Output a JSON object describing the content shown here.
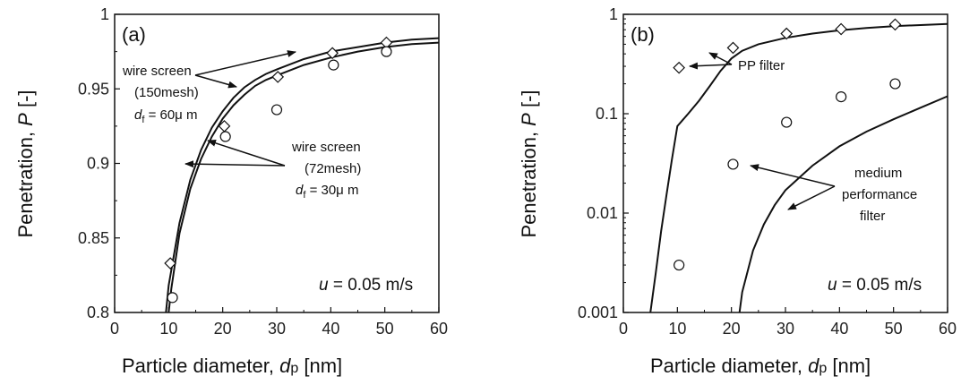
{
  "chart_data": [
    {
      "panel": "(a)",
      "type": "scatter",
      "xlabel": {
        "text": "Particle diameter, ",
        "var": "d",
        "sub": "p",
        "unit": " [nm]"
      },
      "ylabel": {
        "text": "Penetration, ",
        "var": "P",
        "unit": " [-]"
      },
      "xlim": [
        0,
        60
      ],
      "ylim": [
        0.8,
        1.0
      ],
      "yscale": "linear",
      "xticks": [
        0,
        10,
        20,
        30,
        40,
        50,
        60
      ],
      "yticks": [
        0.8,
        0.85,
        0.9,
        0.95,
        1.0
      ],
      "ytick_labels": [
        "0.8",
        "0.85",
        "0.9",
        "0.95",
        "1"
      ],
      "grid": false,
      "condition": {
        "var": "u",
        "text": " = 0.05 m/s"
      },
      "series": [
        {
          "marker": "diamond",
          "x": [
            10.3,
            20.3,
            30.2,
            40.3,
            50.3
          ],
          "y": [
            0.833,
            0.925,
            0.958,
            0.974,
            0.981
          ]
        },
        {
          "marker": "circle",
          "x": [
            10.7,
            20.5,
            30.0,
            40.5,
            50.3
          ],
          "y": [
            0.81,
            0.918,
            0.936,
            0.966,
            0.975
          ]
        },
        {
          "type": "line",
          "x": [
            9.5,
            10,
            12,
            14,
            16,
            18,
            20,
            22,
            24,
            26,
            28,
            30,
            35,
            40,
            45,
            50,
            55,
            60
          ],
          "y": [
            0.8,
            0.818,
            0.86,
            0.889,
            0.909,
            0.924,
            0.935,
            0.944,
            0.951,
            0.956,
            0.96,
            0.963,
            0.97,
            0.975,
            0.978,
            0.981,
            0.983,
            0.984
          ]
        },
        {
          "type": "line",
          "x": [
            10.0,
            10.5,
            12,
            14,
            16,
            18,
            20,
            22,
            24,
            26,
            28,
            30,
            35,
            40,
            45,
            50,
            55,
            60
          ],
          "y": [
            0.8,
            0.816,
            0.853,
            0.883,
            0.903,
            0.918,
            0.93,
            0.939,
            0.946,
            0.952,
            0.956,
            0.959,
            0.966,
            0.971,
            0.975,
            0.978,
            0.98,
            0.981
          ]
        }
      ],
      "annotations": [
        {
          "lines": [
            "wire screen",
            "(150mesh)"
          ],
          "d_var": "d",
          "d_sub": "f",
          "d_text": " = 60μ m"
        },
        {
          "lines": [
            "wire screen",
            "(72mesh)"
          ],
          "d_var": "d",
          "d_sub": "f",
          "d_text": " = 30μ m"
        }
      ]
    },
    {
      "panel": "(b)",
      "type": "scatter",
      "xlabel": {
        "text": "Particle diameter, ",
        "var": "d",
        "sub": "p",
        "unit": " [nm]"
      },
      "ylabel": {
        "text": "Penetration, ",
        "var": "P",
        "unit": " [-]"
      },
      "xlim": [
        0,
        60
      ],
      "ylim": [
        0.001,
        1
      ],
      "yscale": "log",
      "xticks": [
        0,
        10,
        20,
        30,
        40,
        50,
        60
      ],
      "yticks": [
        0.001,
        0.01,
        0.1,
        1
      ],
      "ytick_labels": [
        "0.001",
        "0.01",
        "0.1",
        "1"
      ],
      "grid": false,
      "condition": {
        "var": "u",
        "text": " = 0.05 m/s"
      },
      "series": [
        {
          "marker": "diamond",
          "x": [
            10.3,
            20.3,
            30.2,
            40.3,
            50.3
          ],
          "y": [
            0.29,
            0.46,
            0.64,
            0.71,
            0.79
          ]
        },
        {
          "marker": "circle",
          "x": [
            10.3,
            20.3,
            30.2,
            40.3,
            50.3
          ],
          "y": [
            0.003,
            0.031,
            0.082,
            0.148,
            0.2
          ]
        },
        {
          "type": "line",
          "x": [
            5,
            6,
            7,
            8,
            9,
            10,
            12,
            14,
            16,
            18,
            20,
            22,
            25,
            30,
            35,
            40,
            45,
            50,
            55,
            60
          ],
          "y": [
            0.001,
            0.0025,
            0.0066,
            0.0155,
            0.035,
            0.075,
            0.1,
            0.135,
            0.19,
            0.27,
            0.36,
            0.43,
            0.5,
            0.58,
            0.64,
            0.69,
            0.73,
            0.76,
            0.78,
            0.8
          ]
        },
        {
          "type": "line",
          "x": [
            21.5,
            22,
            24,
            26,
            28,
            30,
            35,
            40,
            45,
            50,
            55,
            60
          ],
          "y": [
            0.001,
            0.0016,
            0.0042,
            0.0077,
            0.012,
            0.017,
            0.03,
            0.047,
            0.066,
            0.088,
            0.115,
            0.15
          ]
        }
      ],
      "annotations": [
        {
          "lines": [
            "PP filter"
          ]
        },
        {
          "lines": [
            "medium",
            "performance",
            "filter"
          ]
        }
      ]
    }
  ]
}
